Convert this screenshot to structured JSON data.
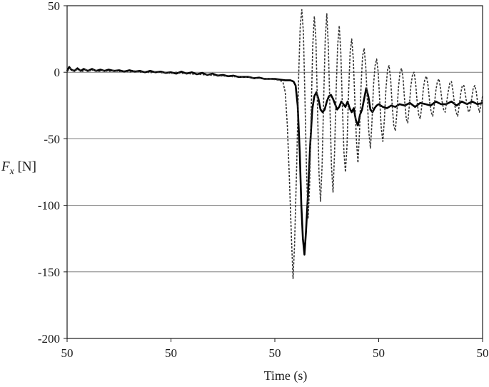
{
  "chart_data": {
    "type": "line",
    "title": "",
    "xlabel": "Time (s)",
    "ylabel": {
      "var": "F",
      "sub": "x",
      "unit": " [N]"
    },
    "x_tick_labels": [
      "50",
      "50",
      "50",
      "50",
      "50"
    ],
    "x_tick_positions": [
      0,
      1,
      2,
      3,
      4
    ],
    "xlim": [
      0,
      4
    ],
    "y_ticks": [
      50,
      0,
      -50,
      -100,
      -150,
      -200
    ],
    "y_tick_labels": [
      "50",
      "0",
      "-50",
      "-100",
      "-150",
      "-200"
    ],
    "ylim": [
      -200,
      50
    ],
    "grid": "horizontal",
    "legend": "none",
    "series": [
      {
        "style": "solid",
        "color": "#000000",
        "points": [
          [
            0.0,
            1
          ],
          [
            0.02,
            4
          ],
          [
            0.04,
            2
          ],
          [
            0.07,
            1
          ],
          [
            0.1,
            3
          ],
          [
            0.13,
            1
          ],
          [
            0.16,
            2.5
          ],
          [
            0.2,
            1
          ],
          [
            0.24,
            2.5
          ],
          [
            0.28,
            1
          ],
          [
            0.32,
            2
          ],
          [
            0.36,
            1
          ],
          [
            0.4,
            2
          ],
          [
            0.45,
            1
          ],
          [
            0.5,
            1.5
          ],
          [
            0.55,
            0.5
          ],
          [
            0.6,
            1.5
          ],
          [
            0.65,
            0.5
          ],
          [
            0.7,
            1
          ],
          [
            0.75,
            0
          ],
          [
            0.8,
            1
          ],
          [
            0.85,
            0
          ],
          [
            0.9,
            0.5
          ],
          [
            0.95,
            -0.5
          ],
          [
            1.0,
            0
          ],
          [
            1.05,
            -1
          ],
          [
            1.1,
            0.5
          ],
          [
            1.15,
            -1
          ],
          [
            1.2,
            0
          ],
          [
            1.25,
            -1.5
          ],
          [
            1.3,
            -0.5
          ],
          [
            1.35,
            -2
          ],
          [
            1.4,
            -1
          ],
          [
            1.45,
            -2.5
          ],
          [
            1.5,
            -2
          ],
          [
            1.55,
            -3
          ],
          [
            1.6,
            -2.5
          ],
          [
            1.65,
            -3.5
          ],
          [
            1.7,
            -3.5
          ],
          [
            1.75,
            -3.5
          ],
          [
            1.8,
            -4.5
          ],
          [
            1.85,
            -4
          ],
          [
            1.9,
            -5
          ],
          [
            1.95,
            -5
          ],
          [
            2.0,
            -5
          ],
          [
            2.05,
            -5.5
          ],
          [
            2.1,
            -6
          ],
          [
            2.15,
            -6
          ],
          [
            2.18,
            -7
          ],
          [
            2.2,
            -10
          ],
          [
            2.22,
            -25
          ],
          [
            2.24,
            -60
          ],
          [
            2.255,
            -100
          ],
          [
            2.27,
            -125
          ],
          [
            2.285,
            -137
          ],
          [
            2.3,
            -120
          ],
          [
            2.32,
            -90
          ],
          [
            2.34,
            -55
          ],
          [
            2.36,
            -28
          ],
          [
            2.38,
            -18
          ],
          [
            2.4,
            -15
          ],
          [
            2.42,
            -20
          ],
          [
            2.44,
            -28
          ],
          [
            2.46,
            -30
          ],
          [
            2.48,
            -28
          ],
          [
            2.5,
            -22
          ],
          [
            2.52,
            -18
          ],
          [
            2.54,
            -17
          ],
          [
            2.56,
            -20
          ],
          [
            2.58,
            -24
          ],
          [
            2.6,
            -28
          ],
          [
            2.62,
            -26
          ],
          [
            2.64,
            -22
          ],
          [
            2.66,
            -24
          ],
          [
            2.68,
            -26
          ],
          [
            2.7,
            -22
          ],
          [
            2.72,
            -27
          ],
          [
            2.74,
            -30
          ],
          [
            2.76,
            -27
          ],
          [
            2.78,
            -36
          ],
          [
            2.8,
            -40
          ],
          [
            2.82,
            -32
          ],
          [
            2.84,
            -28
          ],
          [
            2.86,
            -20
          ],
          [
            2.88,
            -12
          ],
          [
            2.9,
            -18
          ],
          [
            2.92,
            -28
          ],
          [
            2.94,
            -30
          ],
          [
            2.96,
            -27
          ],
          [
            2.98,
            -25
          ],
          [
            3.0,
            -24
          ],
          [
            3.04,
            -26
          ],
          [
            3.08,
            -27
          ],
          [
            3.12,
            -25
          ],
          [
            3.16,
            -26
          ],
          [
            3.2,
            -24
          ],
          [
            3.25,
            -25
          ],
          [
            3.3,
            -23
          ],
          [
            3.35,
            -26
          ],
          [
            3.4,
            -23
          ],
          [
            3.45,
            -24
          ],
          [
            3.5,
            -25
          ],
          [
            3.55,
            -22
          ],
          [
            3.6,
            -24
          ],
          [
            3.65,
            -24
          ],
          [
            3.7,
            -22
          ],
          [
            3.75,
            -25
          ],
          [
            3.8,
            -22
          ],
          [
            3.85,
            -24
          ],
          [
            3.9,
            -22
          ],
          [
            3.95,
            -24
          ],
          [
            4.0,
            -23
          ]
        ]
      },
      {
        "style": "dashed",
        "color": "#333333",
        "points": [
          [
            0.0,
            0.5
          ],
          [
            0.03,
            3
          ],
          [
            0.06,
            1
          ],
          [
            0.1,
            2
          ],
          [
            0.14,
            0.5
          ],
          [
            0.18,
            2
          ],
          [
            0.22,
            1
          ],
          [
            0.26,
            2
          ],
          [
            0.3,
            0.5
          ],
          [
            0.35,
            1.5
          ],
          [
            0.4,
            0.5
          ],
          [
            0.45,
            1.5
          ],
          [
            0.5,
            0.5
          ],
          [
            0.55,
            1
          ],
          [
            0.6,
            0
          ],
          [
            0.65,
            1
          ],
          [
            0.7,
            0
          ],
          [
            0.75,
            0.5
          ],
          [
            0.8,
            -0.5
          ],
          [
            0.85,
            0.5
          ],
          [
            0.9,
            -0.5
          ],
          [
            0.95,
            0
          ],
          [
            1.0,
            -1
          ],
          [
            1.05,
            0
          ],
          [
            1.1,
            -1
          ],
          [
            1.15,
            -0.5
          ],
          [
            1.2,
            -1.5
          ],
          [
            1.25,
            -1
          ],
          [
            1.3,
            -2
          ],
          [
            1.35,
            -1.5
          ],
          [
            1.4,
            -2.5
          ],
          [
            1.45,
            -2
          ],
          [
            1.5,
            -3
          ],
          [
            1.55,
            -2.5
          ],
          [
            1.6,
            -3.5
          ],
          [
            1.65,
            -3
          ],
          [
            1.7,
            -4
          ],
          [
            1.75,
            -3.5
          ],
          [
            1.8,
            -4.5
          ],
          [
            1.85,
            -4.5
          ],
          [
            1.9,
            -5
          ],
          [
            1.95,
            -5
          ],
          [
            2.0,
            -5.5
          ],
          [
            2.05,
            -6
          ],
          [
            2.08,
            -8
          ],
          [
            2.1,
            -15
          ],
          [
            2.12,
            -40
          ],
          [
            2.14,
            -80
          ],
          [
            2.16,
            -125
          ],
          [
            2.175,
            -155
          ],
          [
            2.19,
            -130
          ],
          [
            2.21,
            -70
          ],
          [
            2.23,
            0
          ],
          [
            2.245,
            35
          ],
          [
            2.26,
            47
          ],
          [
            2.275,
            30
          ],
          [
            2.29,
            -20
          ],
          [
            2.305,
            -75
          ],
          [
            2.32,
            -110
          ],
          [
            2.335,
            -85
          ],
          [
            2.35,
            -30
          ],
          [
            2.365,
            20
          ],
          [
            2.38,
            42
          ],
          [
            2.395,
            25
          ],
          [
            2.41,
            -25
          ],
          [
            2.425,
            -75
          ],
          [
            2.44,
            -97
          ],
          [
            2.455,
            -70
          ],
          [
            2.47,
            -20
          ],
          [
            2.485,
            25
          ],
          [
            2.5,
            44
          ],
          [
            2.515,
            20
          ],
          [
            2.53,
            -25
          ],
          [
            2.545,
            -70
          ],
          [
            2.56,
            -90
          ],
          [
            2.575,
            -60
          ],
          [
            2.59,
            -15
          ],
          [
            2.605,
            20
          ],
          [
            2.62,
            35
          ],
          [
            2.635,
            15
          ],
          [
            2.65,
            -25
          ],
          [
            2.665,
            -60
          ],
          [
            2.68,
            -75
          ],
          [
            2.695,
            -55
          ],
          [
            2.71,
            -15
          ],
          [
            2.725,
            15
          ],
          [
            2.74,
            25
          ],
          [
            2.755,
            10
          ],
          [
            2.77,
            -20
          ],
          [
            2.785,
            -50
          ],
          [
            2.8,
            -68
          ],
          [
            2.815,
            -45
          ],
          [
            2.83,
            -10
          ],
          [
            2.845,
            12
          ],
          [
            2.86,
            18
          ],
          [
            2.875,
            5
          ],
          [
            2.89,
            -20
          ],
          [
            2.905,
            -45
          ],
          [
            2.92,
            -57
          ],
          [
            2.935,
            -38
          ],
          [
            2.95,
            -10
          ],
          [
            2.965,
            5
          ],
          [
            2.98,
            10
          ],
          [
            2.995,
            0
          ],
          [
            3.01,
            -22
          ],
          [
            3.025,
            -42
          ],
          [
            3.04,
            -52
          ],
          [
            3.055,
            -35
          ],
          [
            3.07,
            -12
          ],
          [
            3.085,
            2
          ],
          [
            3.1,
            5
          ],
          [
            3.115,
            -5
          ],
          [
            3.13,
            -25
          ],
          [
            3.145,
            -40
          ],
          [
            3.16,
            -44
          ],
          [
            3.175,
            -30
          ],
          [
            3.19,
            -12
          ],
          [
            3.205,
            0
          ],
          [
            3.22,
            3
          ],
          [
            3.235,
            -5
          ],
          [
            3.25,
            -22
          ],
          [
            3.265,
            -35
          ],
          [
            3.28,
            -38
          ],
          [
            3.295,
            -25
          ],
          [
            3.31,
            -10
          ],
          [
            3.325,
            -2
          ],
          [
            3.34,
            0
          ],
          [
            3.355,
            -8
          ],
          [
            3.37,
            -22
          ],
          [
            3.385,
            -32
          ],
          [
            3.4,
            -35
          ],
          [
            3.415,
            -25
          ],
          [
            3.43,
            -12
          ],
          [
            3.445,
            -5
          ],
          [
            3.46,
            -3
          ],
          [
            3.475,
            -10
          ],
          [
            3.49,
            -22
          ],
          [
            3.505,
            -30
          ],
          [
            3.52,
            -33
          ],
          [
            3.535,
            -25
          ],
          [
            3.55,
            -14
          ],
          [
            3.565,
            -7
          ],
          [
            3.58,
            -5
          ],
          [
            3.595,
            -12
          ],
          [
            3.61,
            -22
          ],
          [
            3.625,
            -28
          ],
          [
            3.64,
            -30
          ],
          [
            3.655,
            -22
          ],
          [
            3.67,
            -14
          ],
          [
            3.685,
            -8
          ],
          [
            3.7,
            -7
          ],
          [
            3.715,
            -14
          ],
          [
            3.73,
            -24
          ],
          [
            3.745,
            -30
          ],
          [
            3.76,
            -33
          ],
          [
            3.775,
            -25
          ],
          [
            3.79,
            -16
          ],
          [
            3.805,
            -10
          ],
          [
            3.82,
            -10
          ],
          [
            3.835,
            -17
          ],
          [
            3.85,
            -25
          ],
          [
            3.865,
            -30
          ],
          [
            3.88,
            -28
          ],
          [
            3.895,
            -20
          ],
          [
            3.91,
            -12
          ],
          [
            3.925,
            -10
          ],
          [
            3.94,
            -15
          ],
          [
            3.955,
            -25
          ],
          [
            3.97,
            -30
          ],
          [
            3.985,
            -24
          ],
          [
            4.0,
            -18
          ]
        ]
      }
    ]
  }
}
